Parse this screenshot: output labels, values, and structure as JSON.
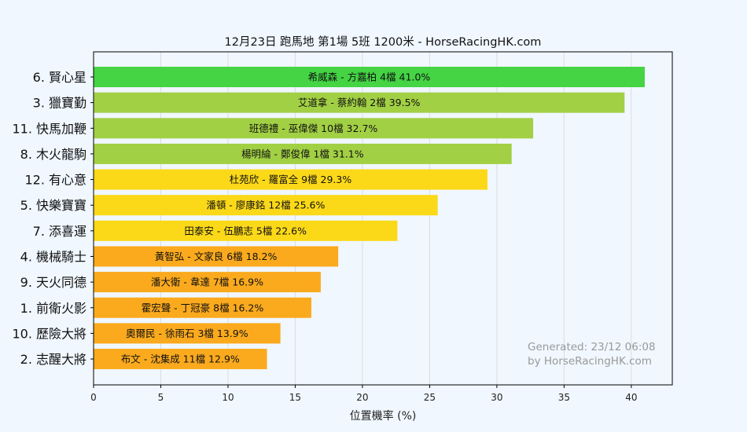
{
  "chart_data": {
    "type": "bar",
    "orientation": "horizontal",
    "title": "12月23日  跑馬地  第1場  5班  1200米 - HorseRacingHK.com",
    "xlabel": "位置機率 (%)",
    "ylabel": "",
    "xlim": [
      0,
      43.05
    ],
    "xticks": [
      0,
      5,
      10,
      15,
      20,
      25,
      30,
      35,
      40
    ],
    "grid": "vertical",
    "categories": [
      "6. 賢心星",
      "3. 獵寶勤",
      "11. 快馬加鞭",
      "8. 木火龍駒",
      "12. 有心意",
      "5. 快樂寶寶",
      "7. 添喜運",
      "4. 機械騎士",
      "9. 天火同德",
      "1. 前衛火影",
      "10. 歷險大將",
      "2. 志醒大將"
    ],
    "values": [
      41.0,
      39.5,
      32.7,
      31.1,
      29.3,
      25.6,
      22.6,
      18.2,
      16.9,
      16.2,
      13.9,
      12.9
    ],
    "bar_labels": [
      "希威森 - 方嘉柏 4檔  41.0%",
      "艾道拿 - 蔡約翰 2檔  39.5%",
      "班德禮 - 巫偉傑 10檔  32.7%",
      "楊明綸 - 鄭俊偉 1檔  31.1%",
      "杜苑欣 - 羅富全 9檔  29.3%",
      "潘頓 - 廖康銘 12檔  25.6%",
      "田泰安 - 伍鵬志 5檔  22.6%",
      "黃智弘 - 文家良 6檔  18.2%",
      "潘大衛 - 韋達 7檔  16.9%",
      "霍宏聲 - 丁冠豪 8檔  16.2%",
      "奧爾民 - 徐雨石 3檔  13.9%",
      "布文 - 沈集成 11檔  12.9%"
    ],
    "colors": [
      "#44d444",
      "#a2d044",
      "#a2d044",
      "#a2d044",
      "#fcd918",
      "#fcd918",
      "#fcd918",
      "#fbaa1e",
      "#fbaa1e",
      "#fbaa1e",
      "#fbaa1e",
      "#fbaa1e"
    ],
    "annotation": [
      "Generated: 23/12 06:08",
      "by HorseRacingHK.com"
    ]
  }
}
